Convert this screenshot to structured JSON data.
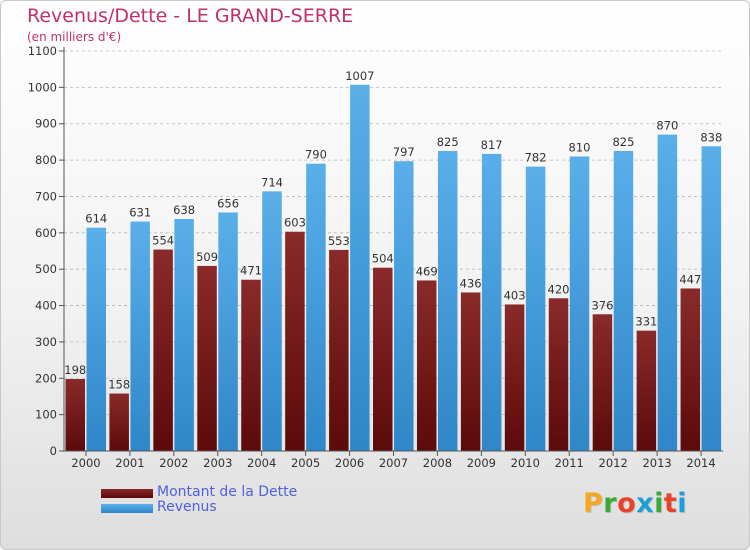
{
  "colors": {
    "title": "#c0306e",
    "dette": "#7a1a1a",
    "revenus": "#4da3e0",
    "legend_text": "#4f62d8"
  },
  "logo": {
    "text": "Proxiti",
    "colors": [
      "#f5a623",
      "#3aaa35",
      "#e8412c",
      "#1a9fd8",
      "#3aaa35",
      "#e8412c",
      "#1a9fd8"
    ]
  },
  "chart_data": {
    "type": "bar",
    "title": "Revenus/Dette - LE GRAND-SERRE",
    "subtitle": "(en milliers d'€)",
    "xlabel": "",
    "ylabel": "",
    "categories": [
      "2000",
      "2001",
      "2002",
      "2003",
      "2004",
      "2005",
      "2006",
      "2007",
      "2008",
      "2009",
      "2010",
      "2011",
      "2012",
      "2013",
      "2014"
    ],
    "series": [
      {
        "name": "Montant de la Dette",
        "values": [
          198,
          158,
          554,
          509,
          471,
          603,
          553,
          504,
          469,
          436,
          403,
          420,
          376,
          331,
          447
        ]
      },
      {
        "name": "Revenus",
        "values": [
          614,
          631,
          638,
          656,
          714,
          790,
          1007,
          797,
          825,
          817,
          782,
          810,
          825,
          870,
          838
        ]
      }
    ],
    "ylim": [
      0,
      1100
    ],
    "yticks": [
      0,
      100,
      200,
      300,
      400,
      500,
      600,
      700,
      800,
      900,
      1000,
      1100
    ],
    "grid": "horizontal-dashed",
    "legend": "bottom-left"
  }
}
